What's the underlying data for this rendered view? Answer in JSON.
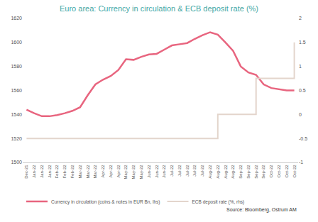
{
  "chart_data": {
    "type": "line",
    "title": "Euro area: Currency in circulation & ECB deposit rate (%)",
    "categories": [
      "Dec-21",
      "Jan-22",
      "Jan-22",
      "Jan-22",
      "Feb-22",
      "Feb-22",
      "Feb-22",
      "Mar-22",
      "Mar-22",
      "Mar-22",
      "Apr-22",
      "Apr-22",
      "Apr-22",
      "May-22",
      "May-22",
      "May-22",
      "Jun-22",
      "Jun-22",
      "Jun-22",
      "Jul-22",
      "Jul-22",
      "Jul-22",
      "Jul-22",
      "Jul-22",
      "Aug-22",
      "Aug-22",
      "Aug-22",
      "Aug-22",
      "Sep-22",
      "Sep-22",
      "Sep-22",
      "Sep-22",
      "Oct-22",
      "Oct-22",
      "Oct-22",
      "Oct-22"
    ],
    "series": [
      {
        "name": "Currency in circulation (coins & notes in EUR Bn, lhs)",
        "color": "#e8657f",
        "values": [
          1544,
          1541,
          1538.5,
          1538.5,
          1539.5,
          1541,
          1543,
          1546,
          1556,
          1565,
          1569,
          1572,
          1577,
          1586,
          1585.5,
          1588,
          1590,
          1590.5,
          1594,
          1597.5,
          1598.5,
          1599.5,
          1603,
          1606,
          1608.5,
          1606.5,
          1600,
          1593,
          1580,
          1575,
          1573,
          1565,
          1562,
          1561,
          1560,
          1560
        ]
      },
      {
        "name": "ECB deposit rate (%, rhs)",
        "color": "#e3d5cc",
        "axis": "y2",
        "line_style": "step",
        "values": [
          -0.5,
          -0.5,
          -0.5,
          -0.5,
          -0.5,
          -0.5,
          -0.5,
          -0.5,
          -0.5,
          -0.5,
          -0.5,
          -0.5,
          -0.5,
          -0.5,
          -0.5,
          -0.5,
          -0.5,
          -0.5,
          -0.5,
          -0.5,
          -0.5,
          -0.5,
          -0.5,
          -0.5,
          -0.5,
          0,
          0,
          0,
          0,
          0,
          0.75,
          0.75,
          0.75,
          0.75,
          0.75,
          1.5
        ]
      }
    ],
    "ylim": [
      1500,
      1620
    ],
    "yticks": [
      1500,
      1520,
      1540,
      1560,
      1580,
      1600,
      1620
    ],
    "y2lim": [
      -1,
      2
    ],
    "y2ticks": [
      -1,
      -0.5,
      0,
      0.5,
      1,
      1.5,
      2
    ],
    "grid": false,
    "legend": "bottom",
    "annotations": [
      "Source: Bloomberg, Ostrum AM"
    ]
  }
}
